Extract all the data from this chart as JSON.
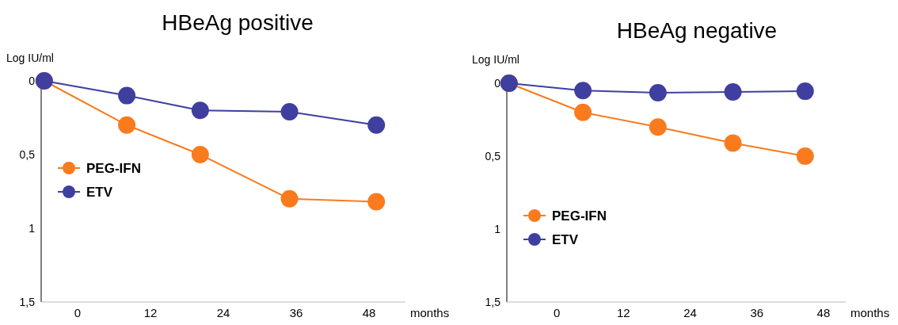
{
  "chart_data": [
    {
      "type": "line",
      "title": "HBeAg positive",
      "ylabel": "Log IU/ml",
      "xlabel": "months",
      "xlim": [
        -6,
        54
      ],
      "xticks": [
        0,
        12,
        24,
        36,
        48
      ],
      "ylim": [
        1.5,
        0
      ],
      "yticks": [
        {
          "value": 0,
          "label": "0"
        },
        {
          "value": 0.5,
          "label": "0,5"
        },
        {
          "value": 1,
          "label": "1"
        },
        {
          "value": 1.5,
          "label": "1,5"
        }
      ],
      "marker": "circle",
      "legend": "left",
      "grid": false,
      "series": [
        {
          "name": "PEG-IFN",
          "color": "#f97b1e",
          "x": [
            -5.5,
            8.1,
            20.2,
            34.9,
            49.2
          ],
          "values": [
            0,
            0.3,
            0.5,
            0.8,
            0.82
          ]
        },
        {
          "name": "ETV",
          "color": "#3f3f9f",
          "x": [
            -5.5,
            8.1,
            20.2,
            34.9,
            49.2
          ],
          "values": [
            0,
            0.1,
            0.2,
            0.21,
            0.3
          ]
        }
      ]
    },
    {
      "type": "line",
      "title": "HBeAg negative",
      "ylabel": "Log IU/ml",
      "xlabel": "months",
      "xlim": [
        -9,
        52
      ],
      "xticks": [
        0,
        12,
        24,
        36,
        48
      ],
      "ylim": [
        1.5,
        0
      ],
      "yticks": [
        {
          "value": 0,
          "label": "0"
        },
        {
          "value": 0.5,
          "label": "0,5"
        },
        {
          "value": 1,
          "label": "1"
        },
        {
          "value": 1.5,
          "label": "1,5"
        }
      ],
      "marker": "circle",
      "legend": "bottom left",
      "grid": false,
      "series": [
        {
          "name": "PEG-IFN",
          "color": "#f97b1e",
          "x": [
            -8.6,
            4.7,
            18.2,
            31.7,
            44.7
          ],
          "values": [
            0,
            0.2,
            0.3,
            0.41,
            0.5
          ]
        },
        {
          "name": "ETV",
          "color": "#3f3f9f",
          "x": [
            -8.6,
            4.7,
            18.2,
            31.7,
            44.7
          ],
          "values": [
            0,
            0.05,
            0.065,
            0.06,
            0.055
          ]
        }
      ]
    }
  ]
}
